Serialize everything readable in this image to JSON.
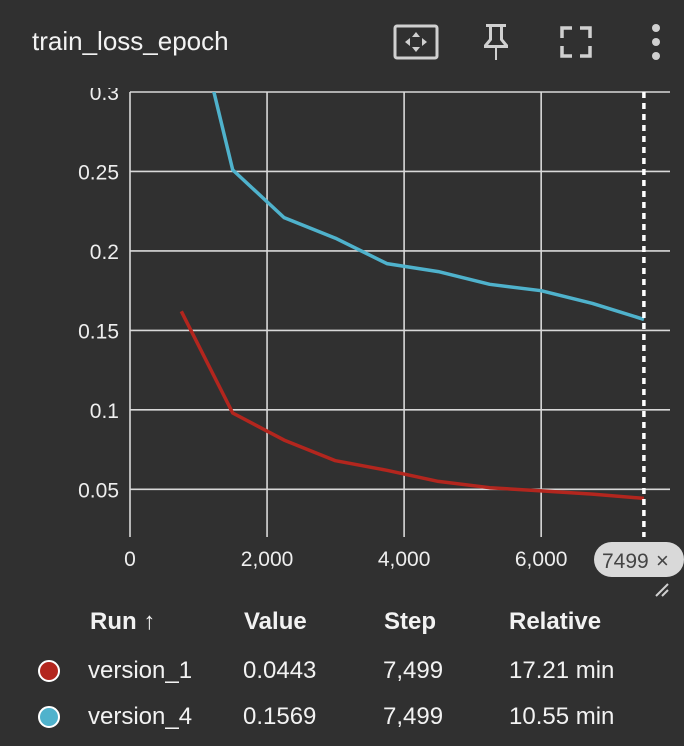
{
  "header": {
    "title": "train_loss_epoch",
    "icons": [
      "fit-domain-icon",
      "pin-icon",
      "fullscreen-icon",
      "more-vert-icon"
    ]
  },
  "chart_data": {
    "type": "line",
    "title": "train_loss_epoch",
    "xlabel": "",
    "ylabel": "",
    "xlim": [
      0,
      7880
    ],
    "ylim": [
      0.02,
      0.3
    ],
    "x_ticks": [
      0,
      2000,
      4000,
      6000
    ],
    "x_tick_labels": [
      "0",
      "2,000",
      "4,000",
      "6,000"
    ],
    "y_ticks": [
      0.05,
      0.1,
      0.15,
      0.2,
      0.25,
      0.3
    ],
    "y_tick_labels": [
      "0.05",
      "0.1",
      "0.15",
      "0.2",
      "0.25",
      "0.3"
    ],
    "grid": true,
    "cursor": {
      "step": 7499,
      "label": "7499",
      "close": "×"
    },
    "series": [
      {
        "name": "version_1",
        "color": "#b3261e",
        "x": [
          749,
          1499,
          2249,
          2999,
          3749,
          4499,
          5249,
          5999,
          6749,
          7499
        ],
        "y": [
          0.162,
          0.098,
          0.081,
          0.068,
          0.062,
          0.055,
          0.051,
          0.049,
          0.047,
          0.0443
        ]
      },
      {
        "name": "version_4",
        "color": "#4fb2cc",
        "x": [
          749,
          1499,
          2249,
          2999,
          3749,
          4499,
          5249,
          5999,
          6749,
          7499
        ],
        "y": [
          0.385,
          0.251,
          0.221,
          0.208,
          0.192,
          0.187,
          0.179,
          0.175,
          0.167,
          0.1569
        ]
      }
    ]
  },
  "legend": {
    "headers": {
      "run": "Run ↑",
      "value": "Value",
      "step": "Step",
      "relative": "Relative"
    },
    "rows": [
      {
        "run": "version_1",
        "value": "0.0443",
        "step": "7,499",
        "relative": "17.21 min",
        "color": "#b3261e"
      },
      {
        "run": "version_4",
        "value": "0.1569",
        "step": "7,499",
        "relative": "10.55 min",
        "color": "#4fb2cc"
      }
    ]
  }
}
